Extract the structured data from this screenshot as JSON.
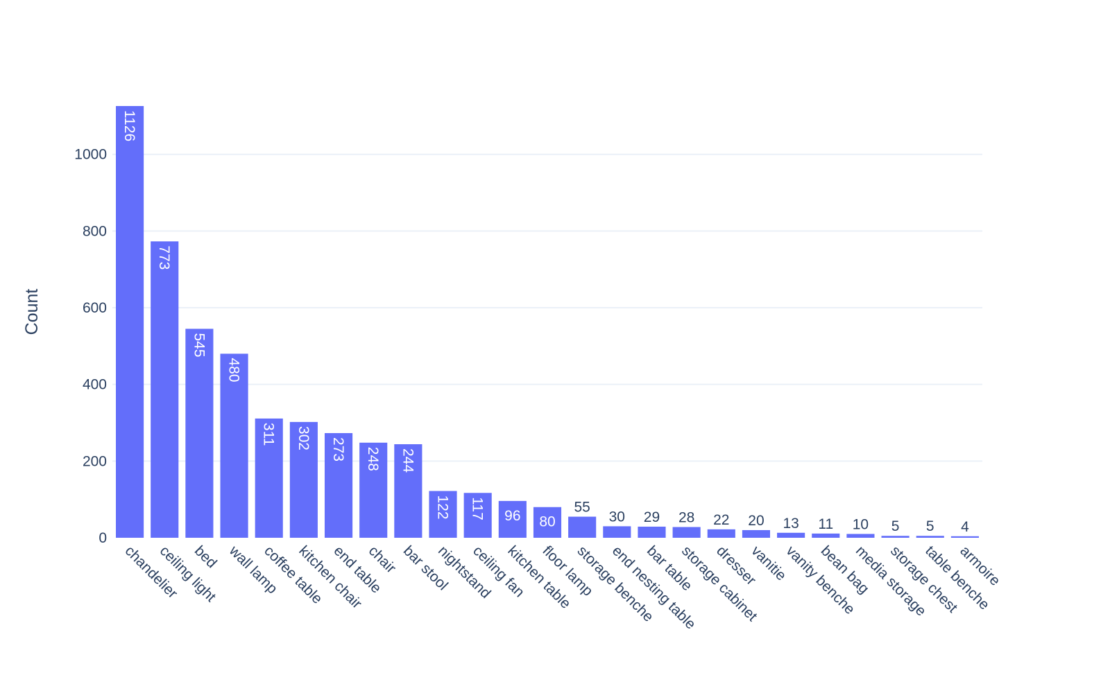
{
  "chart_data": {
    "type": "bar",
    "title": "",
    "xlabel": "",
    "ylabel": "Count",
    "categories": [
      "chandelier",
      "ceiling light",
      "bed",
      "wall lamp",
      "coffee table",
      "kitchen chair",
      "end table",
      "chair",
      "bar stool",
      "nightstand",
      "ceiling fan",
      "kitchen table",
      "floor lamp",
      "storage benche",
      "end nesting table",
      "bar table",
      "storage cabinet",
      "dresser",
      "vanitie",
      "vanity benche",
      "bean bag",
      "media storage",
      "storage chest",
      "table benche",
      "armoire"
    ],
    "values": [
      1126,
      773,
      545,
      480,
      311,
      302,
      273,
      248,
      244,
      122,
      117,
      96,
      80,
      55,
      30,
      29,
      28,
      22,
      20,
      13,
      11,
      10,
      5,
      5,
      4
    ],
    "ylim": [
      0,
      1126
    ],
    "yticks": [
      0,
      200,
      400,
      600,
      800,
      1000
    ],
    "grid": true,
    "bar_color": "#636efa",
    "text_color": "#2a3f5f",
    "grid_color": "#ebf0f8"
  }
}
